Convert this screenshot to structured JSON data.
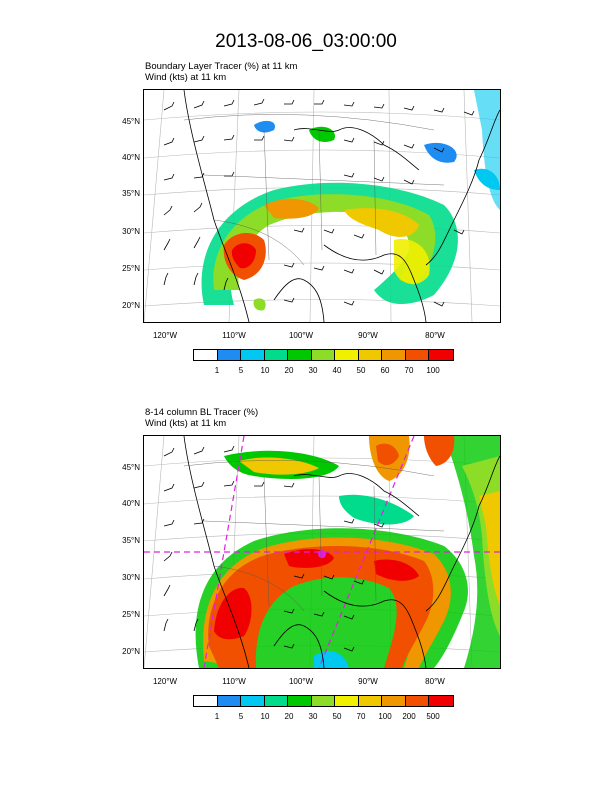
{
  "page": {
    "title": "2013-08-06_03:00:00"
  },
  "panels": [
    {
      "subtitle_line1": "Boundary Layer Tracer   (%)     at   11 km",
      "subtitle_line2": "Wind    (kts)     at   11 km",
      "lat_ticks": [
        "45°N",
        "40°N",
        "35°N",
        "30°N",
        "25°N",
        "20°N"
      ],
      "lon_ticks": [
        "120°W",
        "110°W",
        "100°W",
        "90°W",
        "80°W"
      ],
      "colorbar": {
        "colors": [
          "#ffffff",
          "#1e8cf0",
          "#00c8f0",
          "#00dc8c",
          "#00c800",
          "#8cdc28",
          "#f0f000",
          "#f0c800",
          "#f09600",
          "#f05000",
          "#f00000"
        ],
        "labels": [
          "1",
          "5",
          "10",
          "20",
          "30",
          "40",
          "50",
          "60",
          "70",
          "100"
        ]
      }
    },
    {
      "subtitle_line1": "8-14 column BL Tracer    (%)",
      "subtitle_line2": "Wind    (kts)     at   11 km",
      "lat_ticks": [
        "45°N",
        "40°N",
        "35°N",
        "30°N",
        "25°N",
        "20°N"
      ],
      "lon_ticks": [
        "120°W",
        "110°W",
        "100°W",
        "90°W",
        "80°W"
      ],
      "colorbar": {
        "colors": [
          "#ffffff",
          "#1e8cf0",
          "#00c8f0",
          "#00dc8c",
          "#00c800",
          "#8cdc28",
          "#f0f000",
          "#f0c800",
          "#f09600",
          "#f05000",
          "#f00000"
        ],
        "labels": [
          "1",
          "5",
          "10",
          "20",
          "30",
          "50",
          "70",
          "100",
          "200",
          "500"
        ]
      }
    }
  ]
}
